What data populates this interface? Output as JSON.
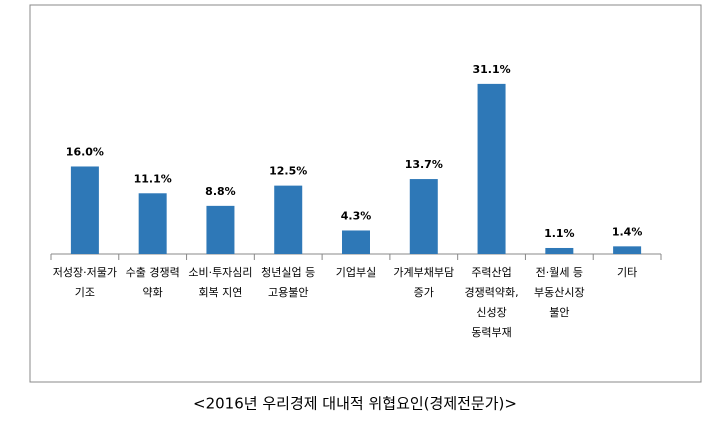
{
  "chart_data": {
    "type": "bar",
    "title": "<2016년 우리경제 대내적 위협요인(경제전문가)>",
    "categories": [
      [
        "저성장·저물가",
        "기조"
      ],
      [
        "수출 경쟁력",
        "약화"
      ],
      [
        "소비·투자심리",
        "회복 지연"
      ],
      [
        "청년실업 등",
        "고용불안"
      ],
      [
        "기업부실"
      ],
      [
        "가계부채부담",
        "증가"
      ],
      [
        "주력산업",
        "경쟁력약화,",
        "신성장",
        "동력부재"
      ],
      [
        "전·월세 등",
        "부동산시장",
        "불안"
      ],
      [
        "기타"
      ]
    ],
    "values": [
      16.0,
      11.1,
      8.8,
      12.5,
      4.3,
      13.7,
      31.1,
      1.1,
      1.4
    ],
    "value_labels": [
      "16.0%",
      "11.1%",
      "8.8%",
      "12.5%",
      "4.3%",
      "13.7%",
      "31.1%",
      "1.1%",
      "1.4%"
    ],
    "color": "#2e78b7"
  }
}
